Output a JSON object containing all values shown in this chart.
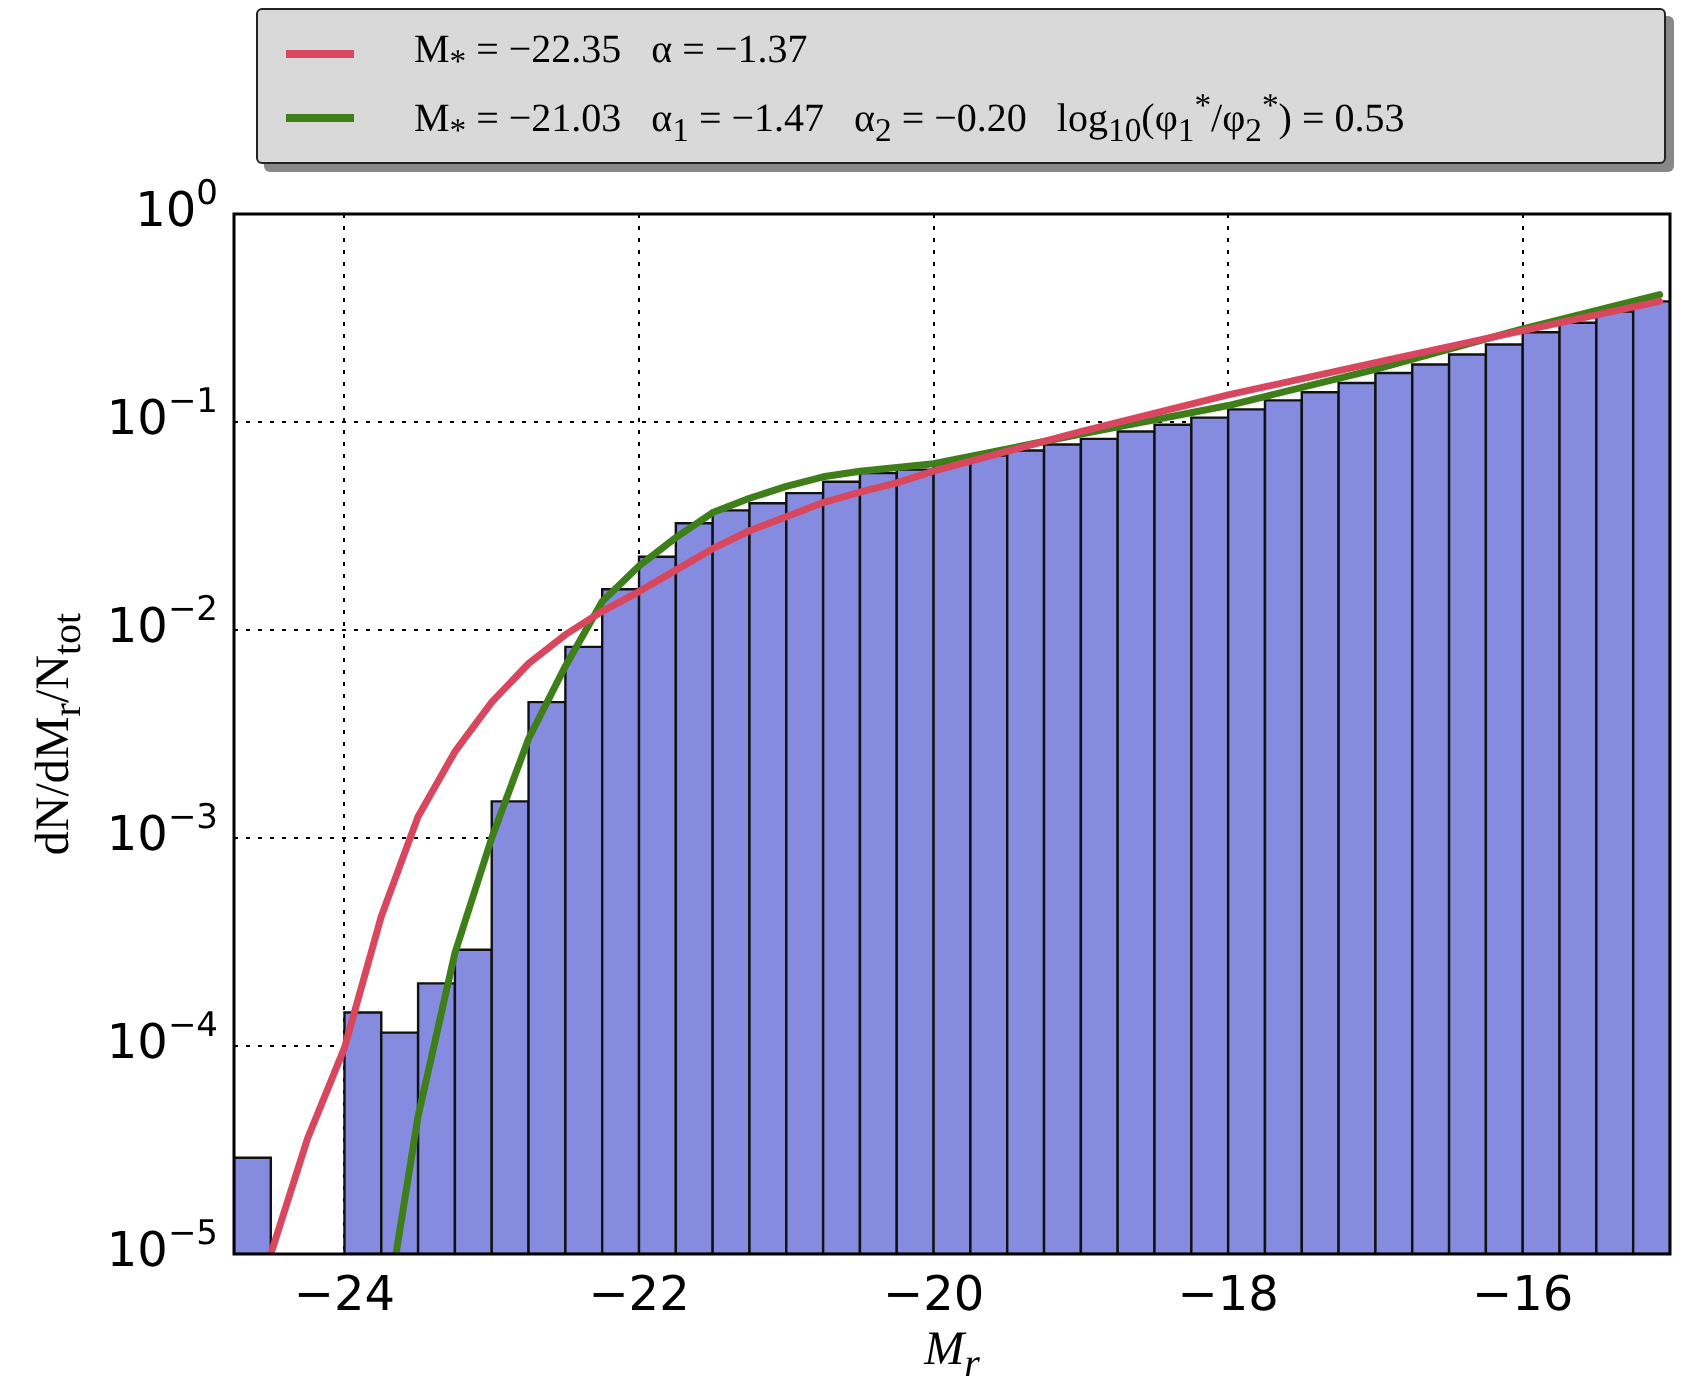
{
  "chart_data": {
    "type": "histogram",
    "xlabel": "M$_{r}$",
    "ylabel": "dN/dM$_{r}$/N$_{tot}$",
    "log": "y",
    "grid": true,
    "legend": "top",
    "color": "#858ce0",
    "xlim": [
      -24.75,
      -15.0
    ],
    "ylim": [
      1e-05,
      1
    ],
    "xticks": [
      {
        "value": -24,
        "label": "−24"
      },
      {
        "value": -22,
        "label": "−22"
      },
      {
        "value": -20,
        "label": "−20"
      },
      {
        "value": -18,
        "label": "−18"
      },
      {
        "value": -16,
        "label": "−16"
      }
    ],
    "yticks": [
      {
        "value": 1e-05,
        "label": "10$^{−5}$"
      },
      {
        "value": 0.0001,
        "label": "10$^{−4}$"
      },
      {
        "value": 0.001,
        "label": "10$^{−3}$"
      },
      {
        "value": 0.01,
        "label": "10$^{−2}$"
      },
      {
        "value": 0.1,
        "label": "10$^{−1}$"
      },
      {
        "value": 1,
        "label": "10$^{0}$"
      }
    ],
    "bins": [
      -24.75,
      -24.5,
      -24.25,
      -24,
      -23.75,
      -23.5,
      -23.25,
      -23,
      -22.75,
      -22.5,
      -22.25,
      -22,
      -21.75,
      -21.5,
      -21.25,
      -21,
      -20.75,
      -20.5,
      -20.25,
      -20,
      -19.75,
      -19.5,
      -19.25,
      -19,
      -18.75,
      -18.5,
      -18.25,
      -18,
      -17.75,
      -17.5,
      -17.25,
      -17,
      -16.75,
      -16.5,
      -16.25,
      -16,
      -15.75,
      -15.5,
      -15.25,
      -15.0
    ],
    "values": [
      2.9e-05,
      null,
      null,
      0.000145,
      0.000116,
      0.0002,
      0.00029,
      0.0015,
      0.0045,
      0.0083,
      0.0157,
      0.0225,
      0.0326,
      0.0376,
      0.0407,
      0.0455,
      0.0516,
      0.0568,
      0.059,
      0.063,
      0.069,
      0.073,
      0.078,
      0.083,
      0.09,
      0.097,
      0.105,
      0.115,
      0.127,
      0.139,
      0.154,
      0.172,
      0.189,
      0.211,
      0.236,
      0.27,
      0.3,
      0.34,
      0.38
    ],
    "series": [
      {
        "type": "line",
        "name": "M$_{*}$ = −22.35   α = −1.37",
        "color": "#d9475f",
        "x": [
          -24.5,
          -24.25,
          -24,
          -23.75,
          -23.5,
          -23.25,
          -23,
          -22.75,
          -22.5,
          -22.25,
          -22,
          -21.75,
          -21.5,
          -21.25,
          -21,
          -20.75,
          -20.5,
          -20.25,
          -20,
          -19,
          -18,
          -17,
          -16,
          -15.07
        ],
        "values": [
          1e-05,
          3.6e-05,
          9.8e-05,
          0.00042,
          0.00127,
          0.0026,
          0.0045,
          0.0069,
          0.0095,
          0.0123,
          0.0153,
          0.0194,
          0.0246,
          0.03,
          0.035,
          0.041,
          0.046,
          0.051,
          0.058,
          0.09,
          0.135,
          0.193,
          0.275,
          0.38
        ]
      },
      {
        "type": "line",
        "name": "M$_{*}$ = −21.03   α$_{1}$ = −1.47   α$_{2}$ = −0.20   log$_{10}$(φ$_{1}$$^{*}$/φ$_{2}$$^{*}$) = 0.53",
        "color": "#3f7f1a",
        "x": [
          -23.65,
          -23.5,
          -23.25,
          -23,
          -22.75,
          -22.5,
          -22.25,
          -22,
          -21.75,
          -21.5,
          -21.25,
          -21,
          -20.75,
          -20.5,
          -20,
          -19,
          -18,
          -17,
          -16,
          -15.07
        ],
        "values": [
          1e-05,
          4.6e-05,
          0.00028,
          0.001,
          0.003,
          0.0067,
          0.0137,
          0.0203,
          0.0278,
          0.0367,
          0.043,
          0.049,
          0.0545,
          0.058,
          0.063,
          0.0875,
          0.12,
          0.179,
          0.28,
          0.41
        ]
      }
    ]
  }
}
